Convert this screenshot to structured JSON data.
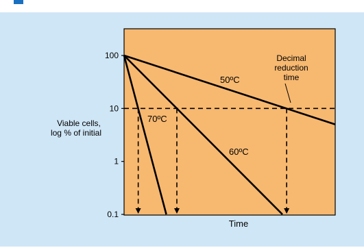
{
  "colors": {
    "page_bg": "#ffffff",
    "panel_bg": "#cfe6f6",
    "header_stripe": "#1a6fc0",
    "plot_bg": "#f7b870",
    "ink": "#000000"
  },
  "chart_data": {
    "type": "line",
    "title": "",
    "xlabel": "Time",
    "ylabel": "Viable cells, log % of initial",
    "ylabel_lines": [
      "Viable cells,",
      "log % of initial"
    ],
    "y_scale": "log",
    "y_ticks": [
      {
        "value": 100,
        "label": "100"
      },
      {
        "value": 10,
        "label": "10"
      },
      {
        "value": 1,
        "label": "1"
      },
      {
        "value": 0.1,
        "label": "0.1"
      }
    ],
    "ylim": [
      0.1,
      100
    ],
    "x_ticks": [],
    "xlim": [
      0,
      1
    ],
    "series": [
      {
        "name": "70ºC",
        "points": [
          [
            0,
            100
          ],
          [
            0.2,
            0.1
          ]
        ]
      },
      {
        "name": "60ºC",
        "points": [
          [
            0,
            100
          ],
          [
            0.75,
            0.1
          ]
        ]
      },
      {
        "name": "50ºC",
        "points": [
          [
            0,
            100
          ],
          [
            1,
            5
          ]
        ]
      }
    ],
    "reference_line": {
      "y": 10,
      "style": "dashed"
    },
    "drop_lines": [
      {
        "x": 0.067,
        "from_y": 10,
        "style": "dashed-arrow"
      },
      {
        "x": 0.25,
        "from_y": 10,
        "style": "dashed-arrow"
      },
      {
        "x": 0.77,
        "from_y": 10,
        "style": "dashed-arrow"
      }
    ],
    "annotation": {
      "text_lines": [
        "Decimal",
        "reduction",
        "time"
      ]
    },
    "grid": false,
    "legend": "none"
  }
}
